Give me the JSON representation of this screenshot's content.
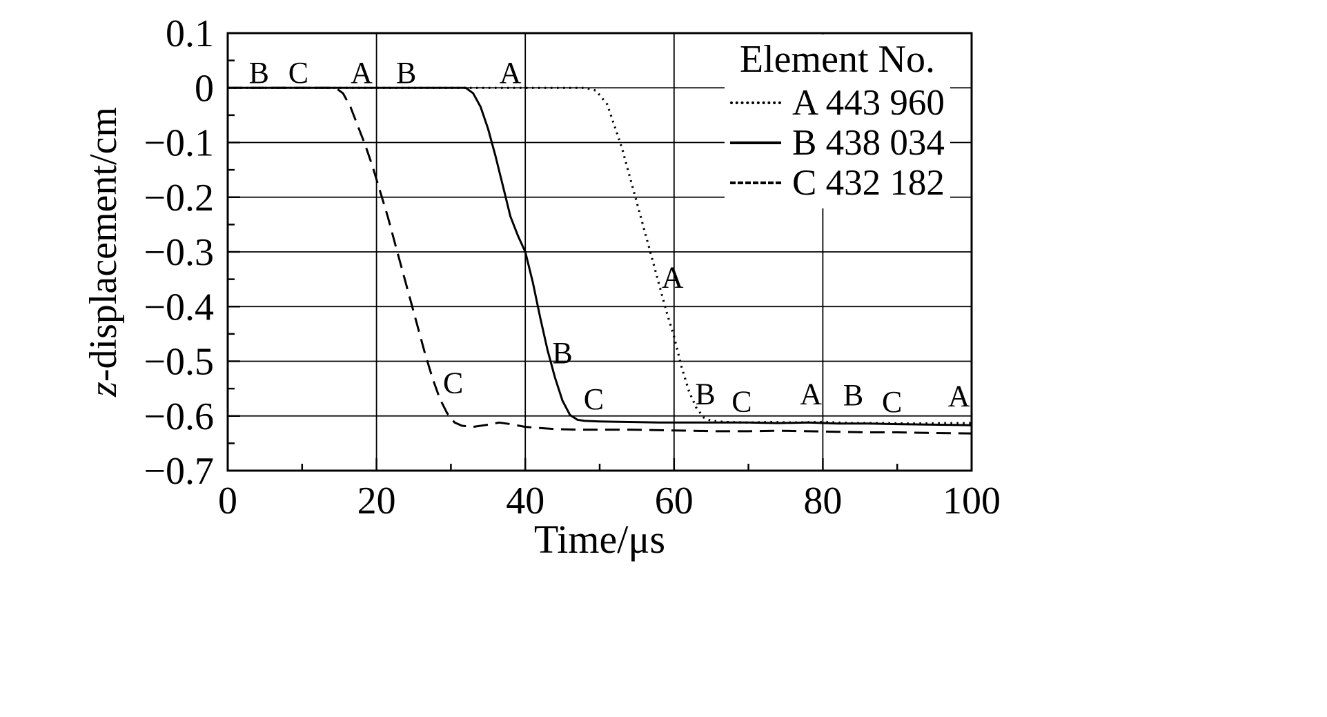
{
  "colors": {
    "foreground": "#000000",
    "background": "#ffffff"
  },
  "chart_data": {
    "type": "line",
    "title": "",
    "xlabel": "Time/μs",
    "ylabel": "z-displacement/cm",
    "ylabel_italic": "z",
    "ylabel_rest": "-displacement/cm",
    "xlim": [
      0,
      100
    ],
    "ylim": [
      -0.7,
      0.1
    ],
    "grid": true,
    "xticks": {
      "values": [
        0,
        20,
        40,
        60,
        80,
        100
      ],
      "labels": [
        "0",
        "20",
        "40",
        "60",
        "80",
        "100"
      ],
      "minor": [
        10,
        30,
        50,
        70,
        90
      ]
    },
    "yticks": {
      "values": [
        0.1,
        0,
        -0.1,
        -0.2,
        -0.3,
        -0.4,
        -0.5,
        -0.6,
        -0.7
      ],
      "labels": [
        "0.1",
        "0",
        "−0.1",
        "−0.2",
        "−0.3",
        "−0.4",
        "−0.5",
        "−0.6",
        "−0.7"
      ],
      "minor": [
        0.05,
        -0.05,
        -0.15,
        -0.25,
        -0.35,
        -0.45,
        -0.55,
        -0.65
      ]
    },
    "legend": {
      "title": "Element No.",
      "position": "top-right"
    },
    "series": [
      {
        "id": "A",
        "letter": "A",
        "element_no": "443 960",
        "legend_label": "A 443 960",
        "line_style": "dotted",
        "points": [
          [
            0,
            0
          ],
          [
            20,
            0
          ],
          [
            35,
            0
          ],
          [
            48,
            0
          ],
          [
            49.5,
            -0.005
          ],
          [
            51,
            -0.03
          ],
          [
            52,
            -0.07
          ],
          [
            53,
            -0.11
          ],
          [
            54,
            -0.16
          ],
          [
            55,
            -0.21
          ],
          [
            56,
            -0.26
          ],
          [
            57,
            -0.31
          ],
          [
            58,
            -0.36
          ],
          [
            59,
            -0.41
          ],
          [
            60,
            -0.455
          ],
          [
            61,
            -0.51
          ],
          [
            62,
            -0.555
          ],
          [
            63,
            -0.585
          ],
          [
            64,
            -0.603
          ],
          [
            65,
            -0.609
          ],
          [
            67,
            -0.611
          ],
          [
            70,
            -0.612
          ],
          [
            73,
            -0.611
          ],
          [
            76,
            -0.612
          ],
          [
            80,
            -0.611
          ],
          [
            84,
            -0.613
          ],
          [
            88,
            -0.613
          ],
          [
            92,
            -0.614
          ],
          [
            96,
            -0.613
          ],
          [
            100,
            -0.613
          ]
        ]
      },
      {
        "id": "B",
        "letter": "B",
        "element_no": "438 034",
        "legend_label": "B 438 034",
        "line_style": "solid",
        "points": [
          [
            0,
            0
          ],
          [
            15,
            0
          ],
          [
            25,
            0
          ],
          [
            32,
            0
          ],
          [
            33,
            -0.01
          ],
          [
            34,
            -0.035
          ],
          [
            35,
            -0.075
          ],
          [
            36,
            -0.125
          ],
          [
            37,
            -0.18
          ],
          [
            38,
            -0.235
          ],
          [
            39,
            -0.27
          ],
          [
            40,
            -0.3
          ],
          [
            41,
            -0.355
          ],
          [
            42,
            -0.42
          ],
          [
            43,
            -0.48
          ],
          [
            44,
            -0.53
          ],
          [
            45,
            -0.572
          ],
          [
            46,
            -0.598
          ],
          [
            47,
            -0.607
          ],
          [
            48,
            -0.609
          ],
          [
            50,
            -0.61
          ],
          [
            54,
            -0.611
          ],
          [
            58,
            -0.612
          ],
          [
            62,
            -0.612
          ],
          [
            66,
            -0.612
          ],
          [
            70,
            -0.612
          ],
          [
            74,
            -0.613
          ],
          [
            78,
            -0.612
          ],
          [
            82,
            -0.614
          ],
          [
            86,
            -0.614
          ],
          [
            90,
            -0.615
          ],
          [
            95,
            -0.616
          ],
          [
            100,
            -0.617
          ]
        ]
      },
      {
        "id": "C",
        "letter": "C",
        "element_no": "432 182",
        "legend_label": "C 432 182",
        "line_style": "dashed",
        "points": [
          [
            0,
            0
          ],
          [
            8,
            0
          ],
          [
            14.5,
            0
          ],
          [
            15.5,
            -0.01
          ],
          [
            16.5,
            -0.035
          ],
          [
            17.5,
            -0.07
          ],
          [
            18.5,
            -0.105
          ],
          [
            19.5,
            -0.145
          ],
          [
            20.5,
            -0.19
          ],
          [
            21.5,
            -0.235
          ],
          [
            22.5,
            -0.285
          ],
          [
            23.5,
            -0.335
          ],
          [
            24.5,
            -0.385
          ],
          [
            25.5,
            -0.435
          ],
          [
            26.5,
            -0.485
          ],
          [
            27.5,
            -0.53
          ],
          [
            28.5,
            -0.568
          ],
          [
            29.5,
            -0.595
          ],
          [
            30.5,
            -0.612
          ],
          [
            31.5,
            -0.618
          ],
          [
            33,
            -0.62
          ],
          [
            35,
            -0.616
          ],
          [
            36.5,
            -0.612
          ],
          [
            38,
            -0.615
          ],
          [
            40,
            -0.62
          ],
          [
            42,
            -0.622
          ],
          [
            44,
            -0.624
          ],
          [
            47,
            -0.625
          ],
          [
            50,
            -0.625
          ],
          [
            54,
            -0.625
          ],
          [
            58,
            -0.626
          ],
          [
            62,
            -0.627
          ],
          [
            66,
            -0.628
          ],
          [
            70,
            -0.628
          ],
          [
            74,
            -0.627
          ],
          [
            78,
            -0.628
          ],
          [
            82,
            -0.629
          ],
          [
            86,
            -0.63
          ],
          [
            90,
            -0.63
          ],
          [
            94,
            -0.631
          ],
          [
            100,
            -0.632
          ]
        ]
      }
    ],
    "curve_labels": [
      {
        "text": "B",
        "x": 4.2,
        "y": 0.009
      },
      {
        "text": "C",
        "x": 9.5,
        "y": 0.009
      },
      {
        "text": "A",
        "x": 18.0,
        "y": 0.009
      },
      {
        "text": "B",
        "x": 24.0,
        "y": 0.009
      },
      {
        "text": "A",
        "x": 38.0,
        "y": 0.009
      },
      {
        "text": "A",
        "x": 59.8,
        "y": -0.365
      },
      {
        "text": "B",
        "x": 45.0,
        "y": -0.503
      },
      {
        "text": "C",
        "x": 30.3,
        "y": -0.558
      },
      {
        "text": "C",
        "x": 49.2,
        "y": -0.588
      },
      {
        "text": "B",
        "x": 64.2,
        "y": -0.578
      },
      {
        "text": "C",
        "x": 69.1,
        "y": -0.592
      },
      {
        "text": "A",
        "x": 78.4,
        "y": -0.578
      },
      {
        "text": "B",
        "x": 84.1,
        "y": -0.58
      },
      {
        "text": "C",
        "x": 89.3,
        "y": -0.593
      },
      {
        "text": "A",
        "x": 98.3,
        "y": -0.582
      }
    ]
  }
}
